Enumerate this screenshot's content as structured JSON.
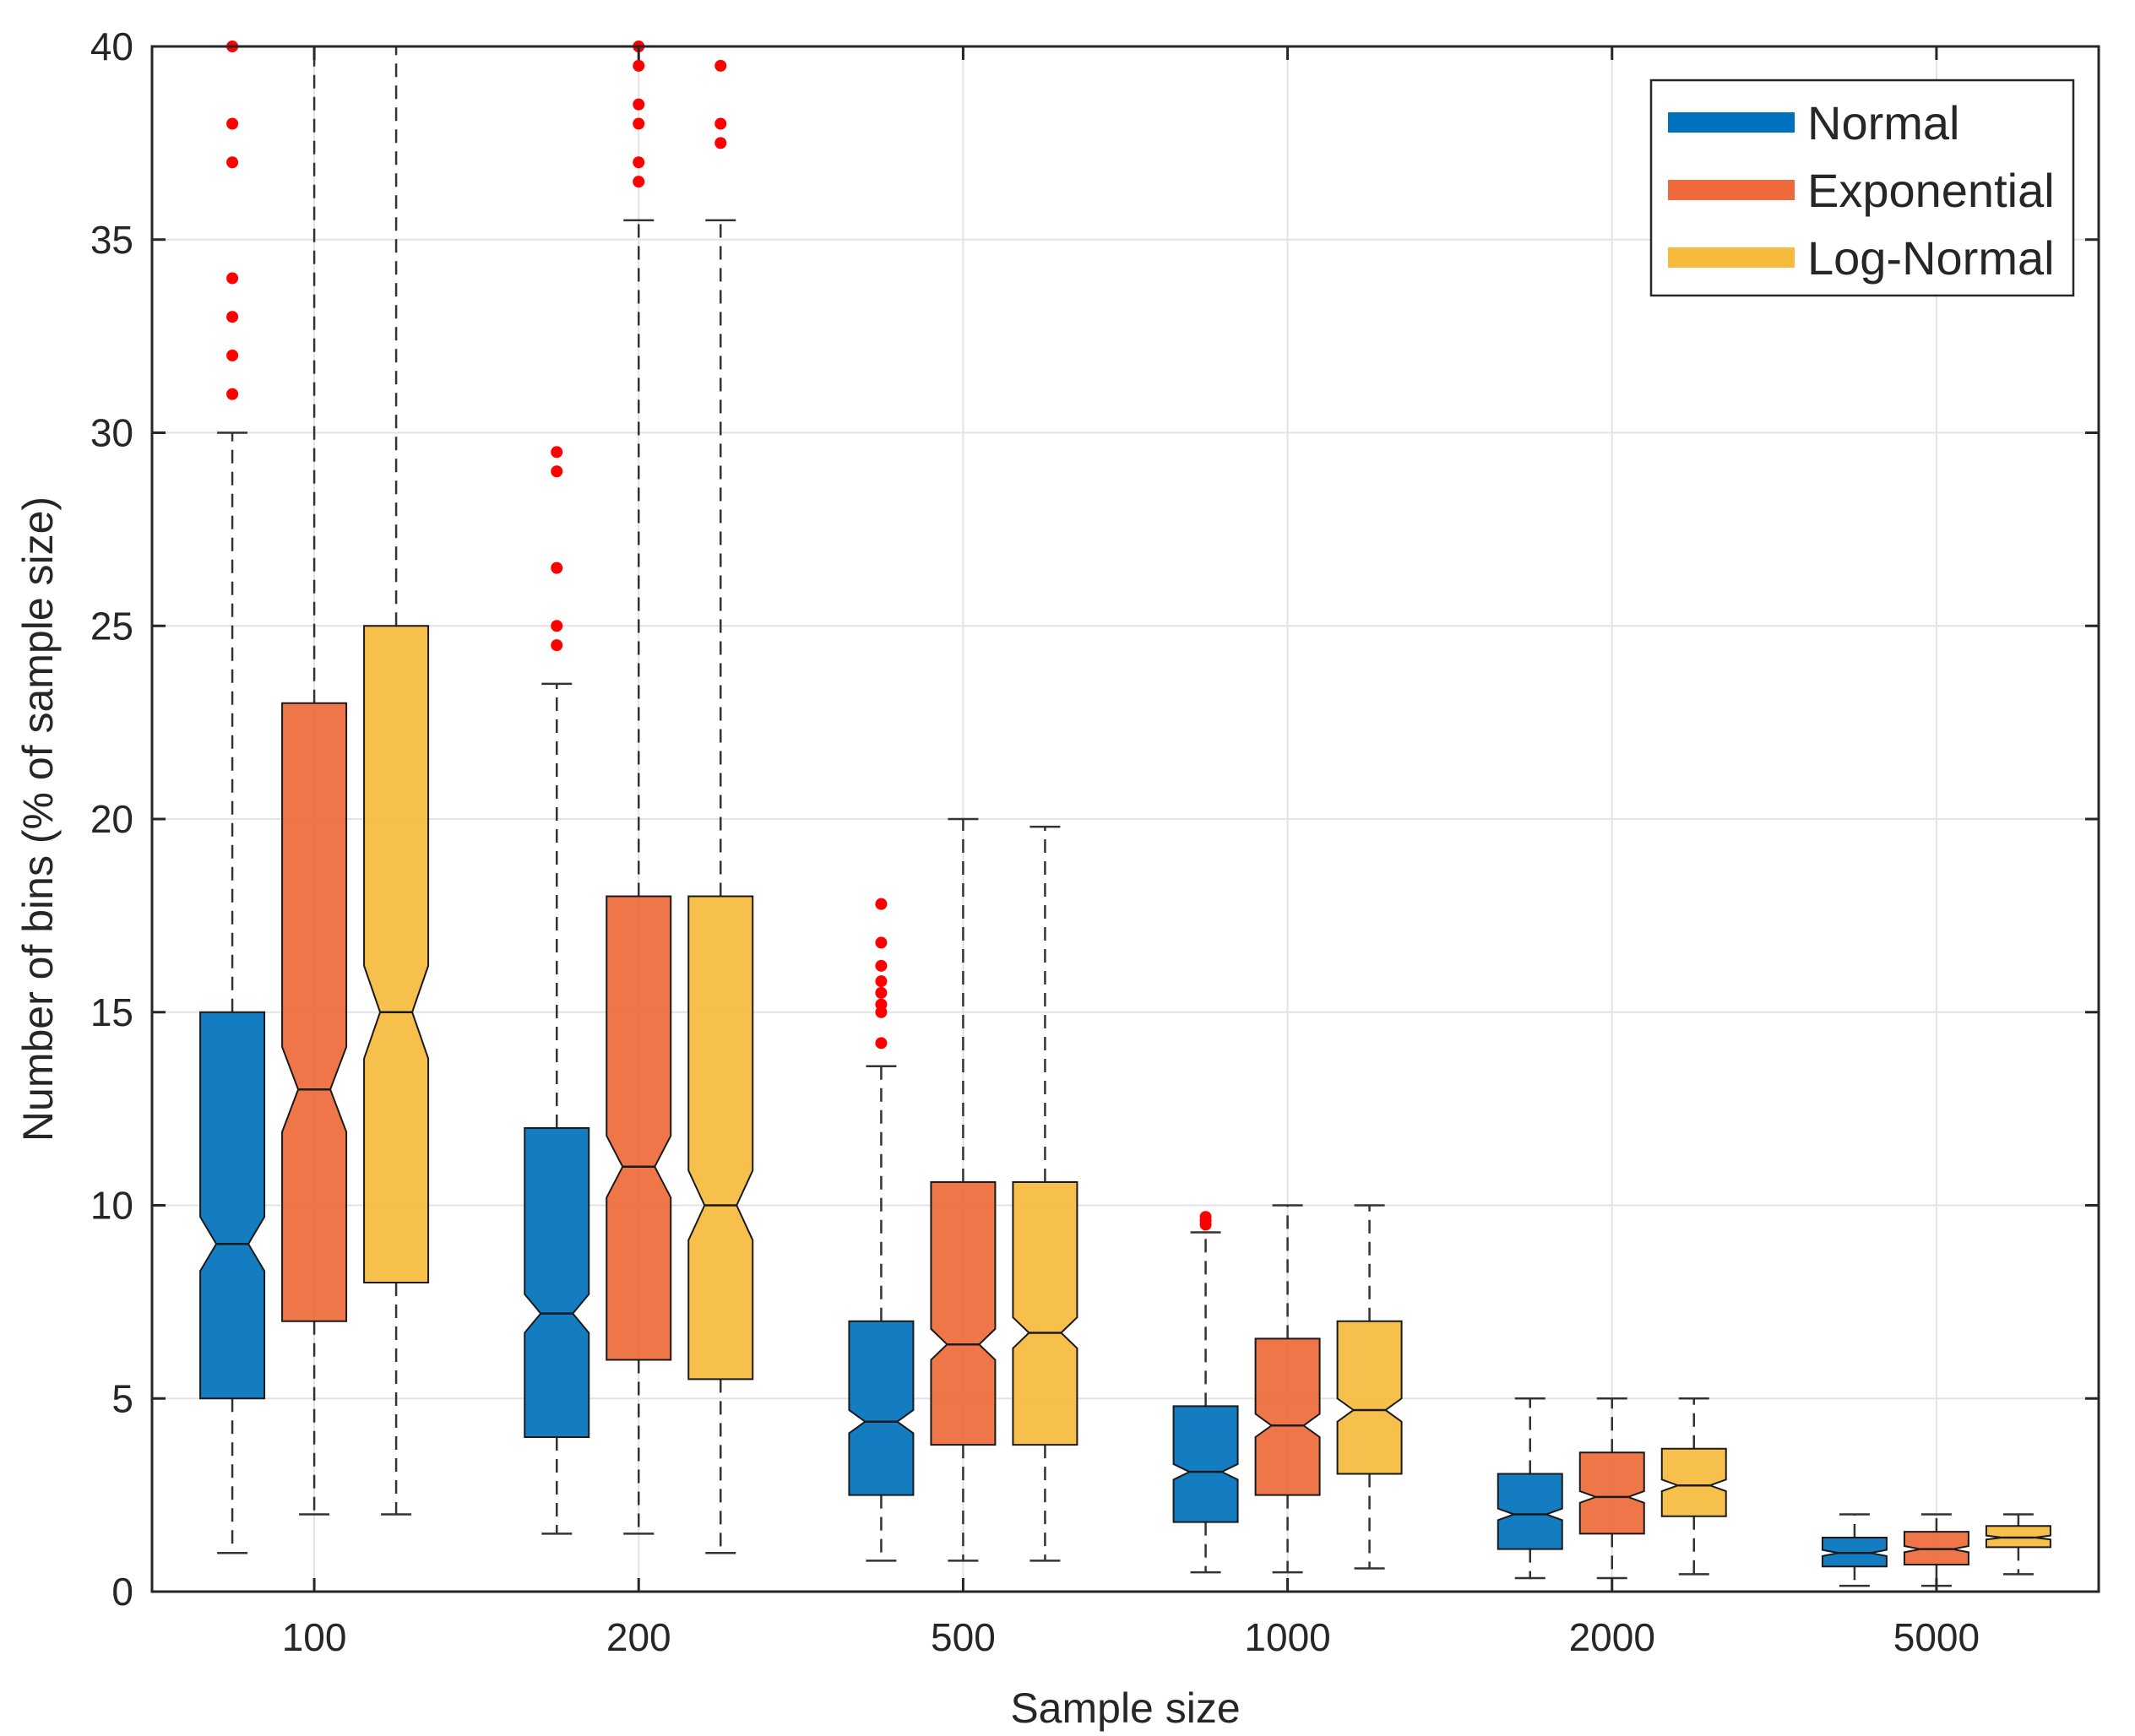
{
  "chart_data": {
    "type": "boxplot",
    "title": "",
    "xlabel": "Sample size",
    "ylabel": "Number of bins (% of sample size)",
    "categories": [
      "100",
      "200",
      "500",
      "1000",
      "2000",
      "5000"
    ],
    "ylim": [
      0,
      40
    ],
    "yticks": [
      0,
      5,
      10,
      15,
      20,
      25,
      30,
      35,
      40
    ],
    "grid": true,
    "notched": true,
    "legend": {
      "position": "top-right",
      "entries": [
        "Normal",
        "Exponential",
        "Log-Normal"
      ]
    },
    "colors": {
      "Normal": "#0072BD",
      "Exponential": "#EE6A3A",
      "Log-Normal": "#F6BA3C",
      "outlier": "#ff0000"
    },
    "series": [
      {
        "name": "Normal",
        "boxes": [
          {
            "min": 1.0,
            "q1": 5.0,
            "median": 9.0,
            "q3": 15.0,
            "max": 30.0,
            "notch": [
              8.3,
              9.7
            ],
            "outliers": [
              31,
              32,
              33,
              34,
              37,
              38,
              40
            ]
          },
          {
            "min": 1.5,
            "q1": 4.0,
            "median": 7.2,
            "q3": 12.0,
            "max": 23.5,
            "notch": [
              6.7,
              7.7
            ],
            "outliers": [
              24.5,
              25,
              26.5,
              29,
              29.5
            ]
          },
          {
            "min": 0.8,
            "q1": 2.5,
            "median": 4.4,
            "q3": 7.0,
            "max": 13.6,
            "notch": [
              4.1,
              4.7
            ],
            "outliers": [
              14.2,
              15,
              15.2,
              15.5,
              15.8,
              16.2,
              16.8,
              17.8
            ]
          },
          {
            "min": 0.5,
            "q1": 1.8,
            "median": 3.1,
            "q3": 4.8,
            "max": 9.3,
            "notch": [
              2.9,
              3.3
            ],
            "outliers": [
              9.5,
              9.6,
              9.7
            ]
          },
          {
            "min": 0.35,
            "q1": 1.1,
            "median": 2.0,
            "q3": 3.05,
            "max": 5.0,
            "notch": [
              1.85,
              2.15
            ],
            "outliers": []
          },
          {
            "min": 0.15,
            "q1": 0.65,
            "median": 1.0,
            "q3": 1.4,
            "max": 2.0,
            "notch": [
              0.92,
              1.08
            ],
            "outliers": []
          }
        ]
      },
      {
        "name": "Exponential",
        "boxes": [
          {
            "min": 2.0,
            "q1": 7.0,
            "median": 13.0,
            "q3": 23.0,
            "max": 40.0,
            "notch": [
              11.9,
              14.1
            ],
            "outliers": []
          },
          {
            "min": 1.5,
            "q1": 6.0,
            "median": 11.0,
            "q3": 18.0,
            "max": 35.5,
            "notch": [
              10.2,
              11.8
            ],
            "outliers": [
              36.5,
              37,
              38,
              38.5,
              39.5,
              40
            ]
          },
          {
            "min": 0.8,
            "q1": 3.8,
            "median": 6.4,
            "q3": 10.6,
            "max": 20.0,
            "notch": [
              6.0,
              6.8
            ],
            "outliers": []
          },
          {
            "min": 0.5,
            "q1": 2.5,
            "median": 4.3,
            "q3": 6.55,
            "max": 10.0,
            "notch": [
              4.0,
              4.6
            ],
            "outliers": []
          },
          {
            "min": 0.35,
            "q1": 1.5,
            "median": 2.45,
            "q3": 3.6,
            "max": 5.0,
            "notch": [
              2.3,
              2.6
            ],
            "outliers": []
          },
          {
            "min": 0.15,
            "q1": 0.7,
            "median": 1.1,
            "q3": 1.55,
            "max": 2.0,
            "notch": [
              1.02,
              1.18
            ],
            "outliers": []
          }
        ]
      },
      {
        "name": "Log-Normal",
        "boxes": [
          {
            "min": 2.0,
            "q1": 8.0,
            "median": 15.0,
            "q3": 25.0,
            "max": 40.0,
            "notch": [
              13.8,
              16.2
            ],
            "outliers": []
          },
          {
            "min": 1.0,
            "q1": 5.5,
            "median": 10.0,
            "q3": 18.0,
            "max": 35.5,
            "notch": [
              9.1,
              10.9
            ],
            "outliers": [
              37.5,
              38,
              39.5
            ]
          },
          {
            "min": 0.8,
            "q1": 3.8,
            "median": 6.7,
            "q3": 10.6,
            "max": 19.8,
            "notch": [
              6.3,
              7.1
            ],
            "outliers": []
          },
          {
            "min": 0.6,
            "q1": 3.05,
            "median": 4.7,
            "q3": 7.0,
            "max": 10.0,
            "notch": [
              4.4,
              5.0
            ],
            "outliers": []
          },
          {
            "min": 0.45,
            "q1": 1.95,
            "median": 2.75,
            "q3": 3.7,
            "max": 5.0,
            "notch": [
              2.6,
              2.9
            ],
            "outliers": []
          },
          {
            "min": 0.45,
            "q1": 1.15,
            "median": 1.4,
            "q3": 1.7,
            "max": 2.0,
            "notch": [
              1.35,
              1.45
            ],
            "outliers": []
          }
        ]
      }
    ]
  }
}
